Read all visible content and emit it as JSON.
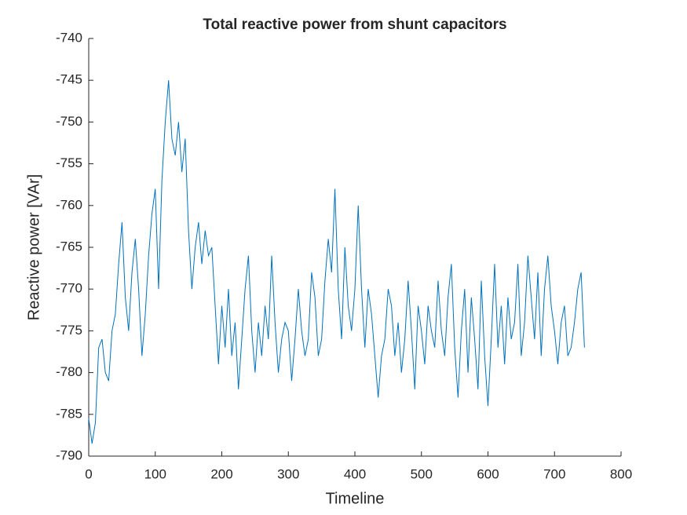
{
  "chart_data": {
    "type": "line",
    "title": "Total reactive power from shunt capacitors",
    "xlabel": "Timeline",
    "ylabel": "Reactive power [VAr]",
    "xlim": [
      0,
      800
    ],
    "xticks": [
      0,
      100,
      200,
      300,
      400,
      500,
      600,
      700,
      800
    ],
    "ylim": [
      -790,
      -740
    ],
    "yticks": [
      -790,
      -785,
      -780,
      -775,
      -770,
      -765,
      -760,
      -755,
      -750,
      -745,
      -740
    ],
    "x": [
      0,
      5,
      10,
      15,
      20,
      25,
      30,
      35,
      40,
      45,
      50,
      55,
      60,
      65,
      70,
      75,
      80,
      85,
      90,
      95,
      100,
      105,
      110,
      115,
      120,
      125,
      130,
      135,
      140,
      145,
      150,
      155,
      160,
      165,
      170,
      175,
      180,
      185,
      190,
      195,
      200,
      205,
      210,
      215,
      220,
      225,
      230,
      235,
      240,
      245,
      250,
      255,
      260,
      265,
      270,
      275,
      280,
      285,
      290,
      295,
      300,
      305,
      310,
      315,
      320,
      325,
      330,
      335,
      340,
      345,
      350,
      355,
      360,
      365,
      370,
      375,
      380,
      385,
      390,
      395,
      400,
      405,
      410,
      415,
      420,
      425,
      430,
      435,
      440,
      445,
      450,
      455,
      460,
      465,
      470,
      475,
      480,
      485,
      490,
      495,
      500,
      505,
      510,
      515,
      520,
      525,
      530,
      535,
      540,
      545,
      550,
      555,
      560,
      565,
      570,
      575,
      580,
      585,
      590,
      595,
      600,
      605,
      610,
      615,
      620,
      625,
      630,
      635,
      640,
      645,
      650,
      655,
      660,
      665,
      670,
      675,
      680,
      685,
      690,
      695,
      700,
      705,
      710,
      715,
      720,
      725,
      730,
      735,
      740,
      745
    ],
    "series": [
      {
        "name": "Reactive power",
        "color": "#0072BD",
        "values": [
          -785.5,
          -788.5,
          -786,
          -777,
          -776,
          -780,
          -781,
          -775,
          -773,
          -767,
          -762,
          -771,
          -775,
          -768,
          -764,
          -770,
          -778,
          -773,
          -766,
          -761,
          -758,
          -770,
          -757,
          -750,
          -745,
          -752,
          -754,
          -750,
          -756,
          -752,
          -763,
          -770,
          -765,
          -762,
          -767,
          -763,
          -766,
          -765,
          -772,
          -779,
          -772,
          -777,
          -770,
          -778,
          -774,
          -782,
          -776,
          -770,
          -766,
          -775,
          -780,
          -774,
          -778,
          -772,
          -776,
          -766,
          -774,
          -780,
          -776,
          -774,
          -775,
          -781,
          -776,
          -770,
          -775,
          -778,
          -776,
          -768,
          -771,
          -778,
          -776,
          -769,
          -764,
          -768,
          -758,
          -770,
          -776,
          -765,
          -772,
          -775,
          -770,
          -760,
          -770,
          -777,
          -770,
          -773,
          -778,
          -783,
          -778,
          -776,
          -770,
          -772,
          -778,
          -774,
          -780,
          -776,
          -769,
          -775,
          -782,
          -772,
          -775,
          -779,
          -772,
          -775,
          -777,
          -769,
          -775,
          -778,
          -771,
          -767,
          -777,
          -783,
          -775,
          -770,
          -780,
          -771,
          -776,
          -782,
          -769,
          -778,
          -784,
          -776,
          -767,
          -777,
          -772,
          -779,
          -771,
          -776,
          -774,
          -767,
          -778,
          -774,
          -766,
          -771,
          -776,
          -768,
          -778,
          -770,
          -766,
          -772,
          -775,
          -779,
          -774,
          -772,
          -778,
          -777,
          -774,
          -770,
          -768,
          -777
        ]
      }
    ]
  }
}
